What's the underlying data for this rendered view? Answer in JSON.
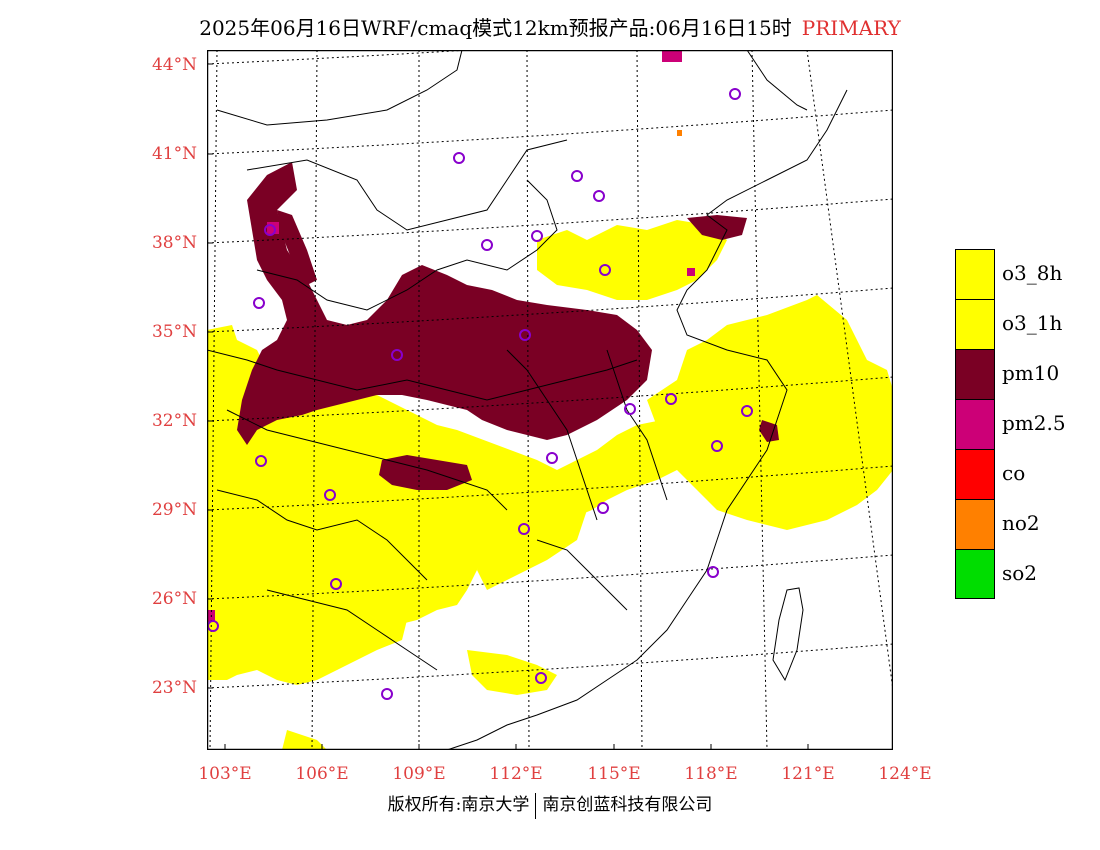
{
  "title": {
    "main": "2025年06月16日WRF/cmaq模式12km预报产品:06月16日15时",
    "tag": "PRIMARY"
  },
  "colors": {
    "o3_8h": "#ffff00",
    "o3_1h": "#ffff00",
    "pm10": "#7a0024",
    "pm2_5": "#cc0077",
    "co": "#ff0000",
    "no2": "#ff8000",
    "so2": "#00dd00",
    "station": "#8800cc",
    "axis_label": "#e04040"
  },
  "axes": {
    "lat_labels": [
      "44°N",
      "41°N",
      "38°N",
      "35°N",
      "32°N",
      "29°N",
      "26°N",
      "23°N"
    ],
    "lon_labels": [
      "103°E",
      "106°E",
      "109°E",
      "112°E",
      "115°E",
      "118°E",
      "121°E",
      "124°E"
    ]
  },
  "legend": {
    "items": [
      {
        "label": "o3_8h",
        "color": "#ffff00"
      },
      {
        "label": "o3_1h",
        "color": "#ffff00"
      },
      {
        "label": "pm10",
        "color": "#7a0024"
      },
      {
        "label": "pm2.5",
        "color": "#cc0077"
      },
      {
        "label": "co",
        "color": "#ff0000"
      },
      {
        "label": "no2",
        "color": "#ff8000"
      },
      {
        "label": "so2",
        "color": "#00dd00"
      }
    ]
  },
  "copyright": {
    "left": "版权所有:南京大学",
    "right": "南京创蓝科技有限公司"
  }
}
